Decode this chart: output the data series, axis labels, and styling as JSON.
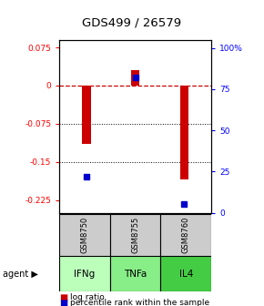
{
  "title": "GDS499 / 26579",
  "samples": [
    "GSM8750",
    "GSM8755",
    "GSM8760"
  ],
  "agents": [
    "IFNg",
    "TNFa",
    "IL4"
  ],
  "log_ratios": [
    -0.115,
    0.03,
    -0.185
  ],
  "percentile_ranks": [
    0.22,
    0.82,
    0.055
  ],
  "ylim_left": [
    -0.25,
    0.09
  ],
  "ylim_right": [
    0.0,
    105.0
  ],
  "yticks_left": [
    0.075,
    0.0,
    -0.075,
    -0.15,
    -0.225
  ],
  "yticks_right": [
    100,
    75,
    50,
    25,
    0
  ],
  "bar_color": "#cc0000",
  "dot_color": "#0000cc",
  "agent_colors": [
    "#bbffbb",
    "#88ee88",
    "#44cc44"
  ],
  "sample_color": "#cccccc",
  "zero_line_color": "#cc0000",
  "grid_color": "#000000",
  "bar_width": 0.18,
  "dot_size": 5
}
